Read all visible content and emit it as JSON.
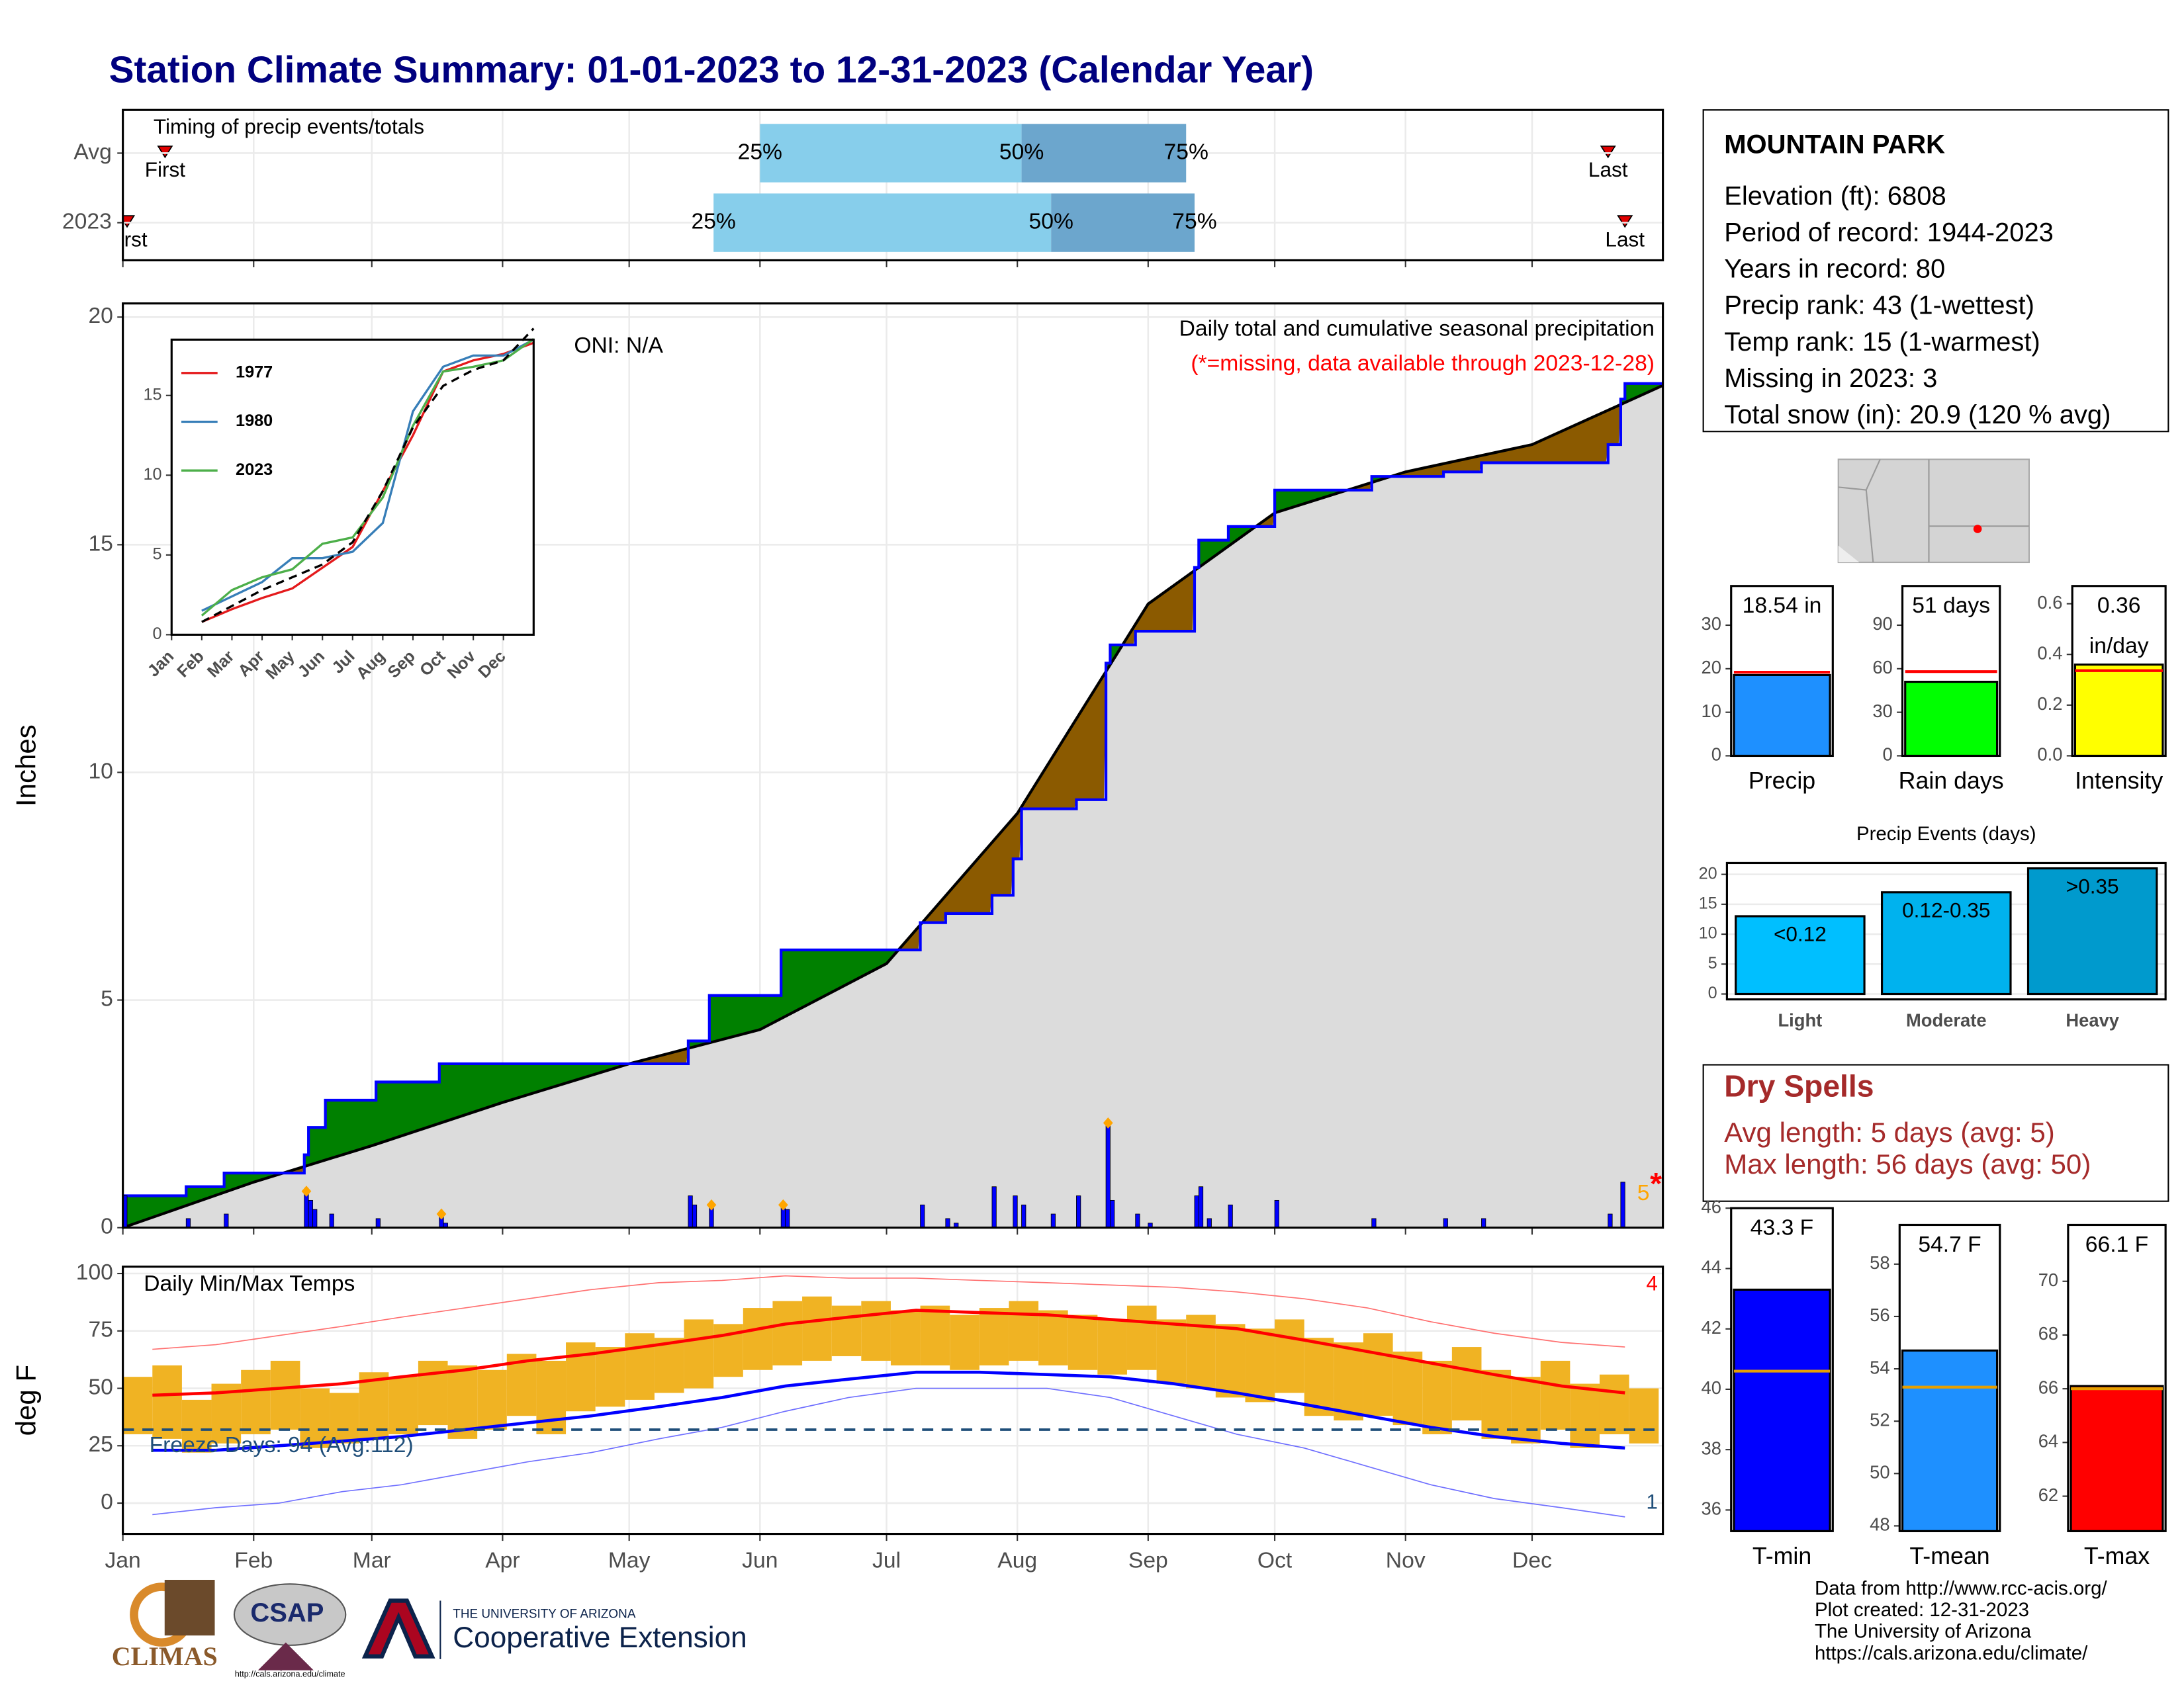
{
  "title": "Station Climate Summary: 01-01-2023 to 12-31-2023 (Calendar Year)",
  "station": {
    "name": "MOUNTAIN PARK",
    "lines": [
      "Elevation (ft): 6808",
      "Period of record: 1944-2023",
      "Years in record: 80",
      "Precip rank: 43 (1-wettest)",
      "Temp rank: 15 (1-warmest)",
      "Missing in 2023: 3",
      "Total snow (in): 20.9 (120 % avg)"
    ]
  },
  "dry_spells": {
    "title": "Dry Spells",
    "lines": [
      "Avg length: 5 days (avg: 5)",
      "Max length: 56 days (avg: 50)"
    ],
    "color": "#a52a2a"
  },
  "credits": [
    "Data from http://www.rcc-acis.org/",
    "Plot created: 12-31-2023",
    "The University of Arizona",
    "https://cals.arizona.edu/climate/"
  ],
  "logos": [
    "CLIMAS",
    "CSAP",
    "http://cals.arizona.edu/climate",
    "THE UNIVERSITY OF ARIZONA",
    "Cooperative Extension"
  ],
  "chart_data": [
    {
      "type": "timing",
      "title": "Timing of precip events/totals",
      "xlim": [
        0,
        365
      ],
      "xticks": [
        0,
        31,
        59,
        90,
        120,
        151,
        181,
        212,
        243,
        273,
        304,
        334
      ],
      "grid": true,
      "rows": [
        {
          "name": "Avg",
          "first": 10,
          "q25": 151,
          "q50": 213,
          "q75": 252,
          "last": 352
        },
        {
          "name": "2023",
          "first": 1,
          "q25": 140,
          "q50": 220,
          "q75": 254,
          "last": 356
        }
      ],
      "quantile_labels": [
        "25%",
        "50%",
        "75%"
      ],
      "first_label": "First",
      "last_label": "Last",
      "colors": [
        "#87ceeb",
        "#6ca6cd"
      ],
      "marker_color": "#e00000"
    },
    {
      "type": "cumulative",
      "ylabel": "Inches",
      "xlim": [
        0,
        365
      ],
      "ylim": [
        0,
        20.3
      ],
      "xticks": [
        0,
        31,
        59,
        90,
        120,
        151,
        181,
        212,
        243,
        273,
        304,
        334
      ],
      "yticks": [
        0,
        5,
        10,
        15,
        20
      ],
      "grid": true,
      "notes": [
        "ONI: N/A",
        "Daily total and cumulative seasonal precipitation",
        "(*=missing, data available through 2023-12-28)"
      ],
      "note_colors": [
        "#000000",
        "#000000",
        "#ff0000"
      ],
      "cumulative": {
        "color": "#0000ff",
        "x": [
          0,
          15,
          24,
          43,
          44,
          48,
          60,
          75,
          134,
          139,
          156,
          189,
          195,
          206,
          211,
          213,
          226,
          233,
          234,
          240,
          254,
          255,
          262,
          273,
          296,
          313,
          322,
          352,
          355,
          356
        ],
        "values": [
          0.7,
          0.9,
          1.2,
          1.6,
          2.2,
          2.8,
          3.2,
          3.6,
          4.1,
          5.1,
          6.1,
          6.7,
          6.9,
          7.3,
          8.1,
          9.2,
          9.4,
          12.4,
          12.8,
          13.1,
          14.5,
          15.1,
          15.4,
          16.2,
          16.5,
          16.6,
          16.8,
          17.2,
          18.2,
          18.54
        ]
      },
      "average": {
        "color": "#000000",
        "x": [
          0,
          31,
          59,
          90,
          120,
          151,
          181,
          212,
          243,
          273,
          304,
          334,
          365
        ],
        "values": [
          0,
          1.0,
          1.8,
          2.75,
          3.6,
          4.35,
          5.8,
          9.1,
          13.7,
          15.7,
          16.6,
          17.2,
          18.5
        ]
      },
      "daily": {
        "color": "#0000ff",
        "x": [
          0,
          15,
          24,
          43,
          44,
          45,
          49,
          60,
          75,
          76,
          134,
          135,
          139,
          156,
          157,
          189,
          195,
          197,
          206,
          211,
          213,
          220,
          226,
          233,
          234,
          240,
          243,
          254,
          255,
          257,
          262,
          273,
          296,
          313,
          322,
          352,
          355
        ],
        "values": [
          0.7,
          0.2,
          0.3,
          0.8,
          0.6,
          0.4,
          0.3,
          0.2,
          0.3,
          0.1,
          0.7,
          0.5,
          0.5,
          0.5,
          0.4,
          0.5,
          0.2,
          0.1,
          0.9,
          0.7,
          0.5,
          0.3,
          0.7,
          2.3,
          0.6,
          0.3,
          0.1,
          0.7,
          0.9,
          0.2,
          0.5,
          0.6,
          0.2,
          0.2,
          0.2,
          0.3,
          1.0
        ]
      },
      "snow_days": [
        43,
        75,
        139,
        156,
        233
      ],
      "snow_color": "#ffa500",
      "above_color": "#008000",
      "below_color": "#8b5a00",
      "fill_color": "#dcdcdc",
      "missing_count": "5",
      "missing_marker": "*"
    },
    {
      "type": "line",
      "categories": [
        "Jan",
        "Feb",
        "Mar",
        "Apr",
        "May",
        "Jun",
        "Jul",
        "Aug",
        "Sep",
        "Oct",
        "Nov",
        "Dec"
      ],
      "ylim": [
        0,
        18.5
      ],
      "yticks": [
        0,
        5,
        10,
        15
      ],
      "series": [
        {
          "name": "1977",
          "color": "#e41a1c",
          "values": [
            0.8,
            1.6,
            2.3,
            2.9,
            4.2,
            5.5,
            9.0,
            12.5,
            16.5,
            17.2,
            17.6,
            18.3
          ]
        },
        {
          "name": "1980",
          "color": "#377eb8",
          "values": [
            1.5,
            2.4,
            3.3,
            4.8,
            4.8,
            5.2,
            7.0,
            14.0,
            16.8,
            17.5,
            17.5,
            18.5
          ]
        },
        {
          "name": "2023",
          "color": "#4daf4a",
          "values": [
            1.2,
            2.8,
            3.6,
            4.1,
            5.7,
            6.1,
            8.6,
            13.1,
            16.5,
            16.8,
            17.2,
            18.54
          ]
        },
        {
          "color": "#000000",
          "dashed": true,
          "values": [
            0.8,
            1.8,
            2.8,
            3.6,
            4.4,
            5.8,
            9.0,
            13.0,
            15.6,
            16.6,
            17.2,
            19.2
          ]
        }
      ]
    },
    {
      "type": "temps",
      "title": "Daily Min/Max Temps",
      "ylabel": "deg F",
      "xlim": [
        0,
        365
      ],
      "ylim": [
        -13.4,
        103
      ],
      "xticks": [
        {
          "value": 0,
          "label": "Jan"
        },
        {
          "value": 31,
          "label": "Feb"
        },
        {
          "value": 59,
          "label": "Mar"
        },
        {
          "value": 90,
          "label": "Apr"
        },
        {
          "value": 120,
          "label": "May"
        },
        {
          "value": 151,
          "label": "Jun"
        },
        {
          "value": 181,
          "label": "Jul"
        },
        {
          "value": 212,
          "label": "Aug"
        },
        {
          "value": 243,
          "label": "Sep"
        },
        {
          "value": 273,
          "label": "Oct"
        },
        {
          "value": 304,
          "label": "Nov"
        },
        {
          "value": 334,
          "label": "Dec"
        }
      ],
      "yticks": [
        0,
        25,
        50,
        75,
        100
      ],
      "grid": true,
      "freeze": 32,
      "freeze_label": "Freeze Days: 94 (Avg:112)",
      "freeze_color": "#1f4e79",
      "record_high_count": "4",
      "record_low_count": "1",
      "daily_range": {
        "color": "#f0b323",
        "x": [
          0,
          7,
          14,
          21,
          28,
          35,
          42,
          49,
          56,
          63,
          70,
          77,
          84,
          91,
          98,
          105,
          112,
          119,
          126,
          133,
          140,
          147,
          154,
          161,
          168,
          175,
          182,
          189,
          196,
          203,
          210,
          217,
          224,
          231,
          238,
          245,
          252,
          259,
          266,
          273,
          280,
          287,
          294,
          301,
          308,
          315,
          322,
          329,
          336,
          343,
          350,
          357
        ],
        "max": [
          55,
          60,
          45,
          52,
          58,
          62,
          50,
          48,
          57,
          55,
          62,
          60,
          58,
          65,
          62,
          70,
          68,
          74,
          72,
          80,
          78,
          85,
          88,
          90,
          86,
          88,
          84,
          86,
          82,
          85,
          88,
          84,
          82,
          80,
          86,
          80,
          82,
          78,
          76,
          80,
          72,
          70,
          74,
          66,
          62,
          68,
          58,
          55,
          62,
          52,
          56,
          50
        ],
        "min": [
          30,
          28,
          22,
          26,
          30,
          32,
          24,
          26,
          28,
          30,
          34,
          28,
          32,
          38,
          30,
          40,
          42,
          45,
          48,
          50,
          55,
          58,
          60,
          62,
          64,
          62,
          60,
          60,
          58,
          60,
          62,
          60,
          58,
          56,
          58,
          52,
          50,
          46,
          44,
          48,
          38,
          36,
          38,
          34,
          30,
          36,
          28,
          26,
          32,
          24,
          30,
          26
        ]
      },
      "line_x": [
        7,
        22,
        37,
        52,
        66,
        81,
        96,
        111,
        127,
        142,
        157,
        172,
        188,
        203,
        219,
        234,
        249,
        264,
        280,
        295,
        310,
        325,
        341,
        356
      ],
      "averages": [
        {
          "color": "#ff0000",
          "values": [
            47,
            48,
            50,
            52,
            55,
            58,
            62,
            65,
            69,
            73,
            78,
            81,
            84,
            83,
            82,
            80,
            78,
            76,
            71,
            66,
            61,
            56,
            51,
            48
          ]
        },
        {
          "color": "#0000ff",
          "values": [
            23,
            23,
            25,
            27,
            29,
            32,
            35,
            38,
            42,
            46,
            51,
            54,
            57,
            57,
            56,
            55,
            52,
            48,
            43,
            38,
            33,
            29,
            26,
            24
          ]
        }
      ],
      "records": [
        {
          "color": "#ff7070",
          "values": [
            67,
            69,
            73,
            77,
            81,
            85,
            89,
            93,
            96,
            97,
            99,
            98,
            98,
            97,
            96,
            95,
            94,
            92,
            89,
            85,
            79,
            74,
            70,
            68
          ]
        },
        {
          "color": "#7070ff",
          "values": [
            -5,
            -2,
            0,
            5,
            8,
            13,
            18,
            22,
            28,
            33,
            40,
            46,
            50,
            50,
            50,
            46,
            38,
            30,
            24,
            16,
            8,
            2,
            -2,
            -6
          ]
        }
      ]
    },
    {
      "type": "summary_bar",
      "label": "Precip",
      "values": [
        18.54
      ],
      "value_labels": [
        "18.54 in"
      ],
      "average": 19.2,
      "avg_color": "#ff0000",
      "color": "#1e90ff",
      "ylim": [
        0,
        39
      ],
      "yticks": [
        0,
        10,
        20,
        30
      ]
    },
    {
      "type": "summary_bar",
      "label": "Rain days",
      "values": [
        51
      ],
      "value_labels": [
        "51 days"
      ],
      "average": 58,
      "avg_color": "#ff0000",
      "color": "#00ff00",
      "ylim": [
        0,
        117
      ],
      "yticks": [
        0,
        30,
        60,
        90
      ]
    },
    {
      "type": "summary_bar",
      "label": "Intensity",
      "values": [
        0.36
      ],
      "value_labels": [
        "0.36"
      ],
      "unit_label": "in/day",
      "average": 0.336,
      "avg_color": "#ff0000",
      "color": "#ffff00",
      "ylim": [
        0,
        0.67
      ],
      "yticks": [
        {
          "value": 0,
          "label": "0.0"
        },
        0.2,
        0.4,
        0.6
      ]
    },
    {
      "type": "bar",
      "title": "Precip Events (days)",
      "categories": [
        "Light",
        "Moderate",
        "Heavy"
      ],
      "values": [
        13,
        17,
        21
      ],
      "bar_labels": [
        "<0.12",
        "0.12-0.35",
        ">0.35"
      ],
      "colors": [
        "#00bfff",
        "#00b2ee",
        "#009acd"
      ],
      "ylim": [
        -0.9,
        21.9
      ],
      "yticks": [
        0,
        5,
        10,
        15,
        20
      ],
      "grid": true
    },
    {
      "type": "summary_bar",
      "label": "T-min",
      "values": [
        43.3
      ],
      "value_labels": [
        "43.3 F"
      ],
      "average": 40.6,
      "avg_color": "#e69f00",
      "color": "#0000ff",
      "ylim": [
        35.3,
        46
      ],
      "yticks": [
        36,
        38,
        40,
        42,
        44,
        46
      ]
    },
    {
      "type": "summary_bar",
      "label": "T-mean",
      "values": [
        54.7
      ],
      "value_labels": [
        "54.7 F"
      ],
      "average": 53.3,
      "avg_color": "#e69f00",
      "color": "#1e90ff",
      "ylim": [
        47.8,
        59.5
      ],
      "yticks": [
        48,
        50,
        52,
        54,
        56,
        58
      ]
    },
    {
      "type": "summary_bar",
      "label": "T-max",
      "values": [
        66.1
      ],
      "value_labels": [
        "66.1 F"
      ],
      "average": 66.0,
      "avg_color": "#e69f00",
      "color": "#ff0000",
      "ylim": [
        60.7,
        72.1
      ],
      "yticks": [
        62,
        64,
        66,
        68,
        70
      ]
    }
  ]
}
